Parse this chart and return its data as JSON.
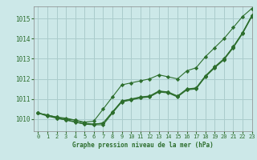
{
  "title": "Graphe pression niveau de la mer (hPa)",
  "bg_color": "#cce8e8",
  "grid_color": "#aacccc",
  "line_color": "#2d6e2d",
  "xlim": [
    -0.5,
    23
  ],
  "ylim": [
    1009.4,
    1015.6
  ],
  "yticks": [
    1010,
    1011,
    1012,
    1013,
    1014,
    1015
  ],
  "xticks": [
    0,
    1,
    2,
    3,
    4,
    5,
    6,
    7,
    8,
    9,
    10,
    11,
    12,
    13,
    14,
    15,
    16,
    17,
    18,
    19,
    20,
    21,
    22,
    23
  ],
  "xtick_labels": [
    "0",
    "1",
    "2",
    "3",
    "4",
    "5",
    "6",
    "7",
    "8",
    "9",
    "10",
    "11",
    "12",
    "13",
    "14",
    "15",
    "16",
    "17",
    "18",
    "19",
    "20",
    "21",
    "22",
    "23"
  ],
  "series_upper": [
    1010.3,
    1010.2,
    1010.1,
    1010.0,
    1009.95,
    1009.85,
    1009.9,
    1010.5,
    1011.1,
    1011.7,
    1011.8,
    1011.9,
    1012.0,
    1012.2,
    1012.1,
    1012.0,
    1012.4,
    1012.55,
    1013.1,
    1013.55,
    1014.0,
    1014.55,
    1015.1,
    1015.5
  ],
  "series_mid1": [
    1010.3,
    1010.2,
    1010.1,
    1010.05,
    1009.95,
    1009.8,
    1009.75,
    1009.8,
    1010.35,
    1010.9,
    1011.0,
    1011.1,
    1011.15,
    1011.4,
    1011.35,
    1011.15,
    1011.5,
    1011.55,
    1012.15,
    1012.6,
    1013.0,
    1013.6,
    1014.3,
    1015.15
  ],
  "series_mid2": [
    1010.3,
    1010.2,
    1010.05,
    1009.97,
    1009.87,
    1009.75,
    1009.75,
    1009.8,
    1010.35,
    1010.88,
    1010.98,
    1011.08,
    1011.13,
    1011.38,
    1011.33,
    1011.13,
    1011.48,
    1011.53,
    1012.13,
    1012.58,
    1012.98,
    1013.58,
    1014.28,
    1015.13
  ],
  "series_lower": [
    1010.3,
    1010.15,
    1010.05,
    1009.95,
    1009.85,
    1009.75,
    1009.72,
    1009.72,
    1010.3,
    1010.85,
    1010.95,
    1011.05,
    1011.1,
    1011.35,
    1011.3,
    1011.1,
    1011.45,
    1011.5,
    1012.1,
    1012.55,
    1012.95,
    1013.55,
    1014.25,
    1015.1
  ]
}
